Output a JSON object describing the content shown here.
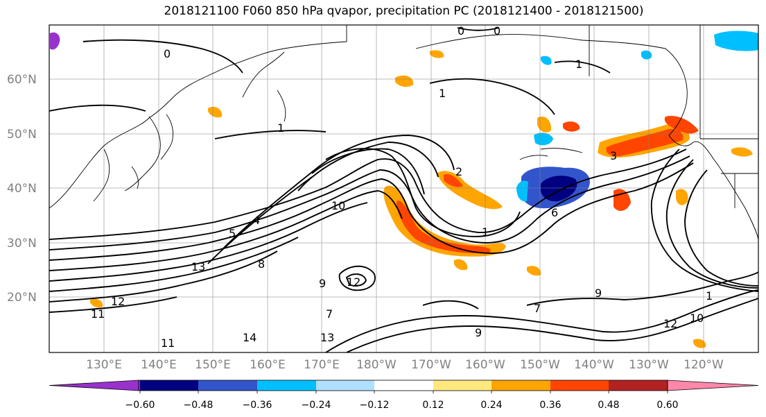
{
  "title": "2018121100 F060 850 hPa qvapor, precipitation PC (2018121400 - 2018121500)",
  "map": {
    "lat_labels": [
      "60°N",
      "50°N",
      "40°N",
      "30°N",
      "20°N"
    ],
    "lon_labels": [
      "130°E",
      "140°E",
      "150°E",
      "160°E",
      "170°E",
      "180°W",
      "170°W",
      "160°W",
      "150°W",
      "140°W",
      "130°W",
      "120°W"
    ],
    "contour_labels": [
      "0",
      "0",
      "0",
      "1",
      "1",
      "1",
      "1",
      "1",
      "2",
      "3",
      "4",
      "5",
      "6",
      "7",
      "7",
      "8",
      "9",
      "9",
      "9",
      "10",
      "10",
      "11",
      "11",
      "12",
      "12",
      "12",
      "13",
      "13",
      "14"
    ],
    "colors": {
      "land_outline": "#000000",
      "grid": "#808080"
    }
  },
  "colorbar": {
    "ticks": [
      "−0.60",
      "−0.48",
      "−0.36",
      "−0.24",
      "−0.12",
      "0.12",
      "0.24",
      "0.36",
      "0.48",
      "0.60"
    ],
    "colors": [
      "#9932cc",
      "#000080",
      "#3355cc",
      "#00bfff",
      "#b0e0ff",
      "#ffffff",
      "#ffe97f",
      "#ffa500",
      "#ff4500",
      "#b22222",
      "#ff88aa"
    ]
  }
}
